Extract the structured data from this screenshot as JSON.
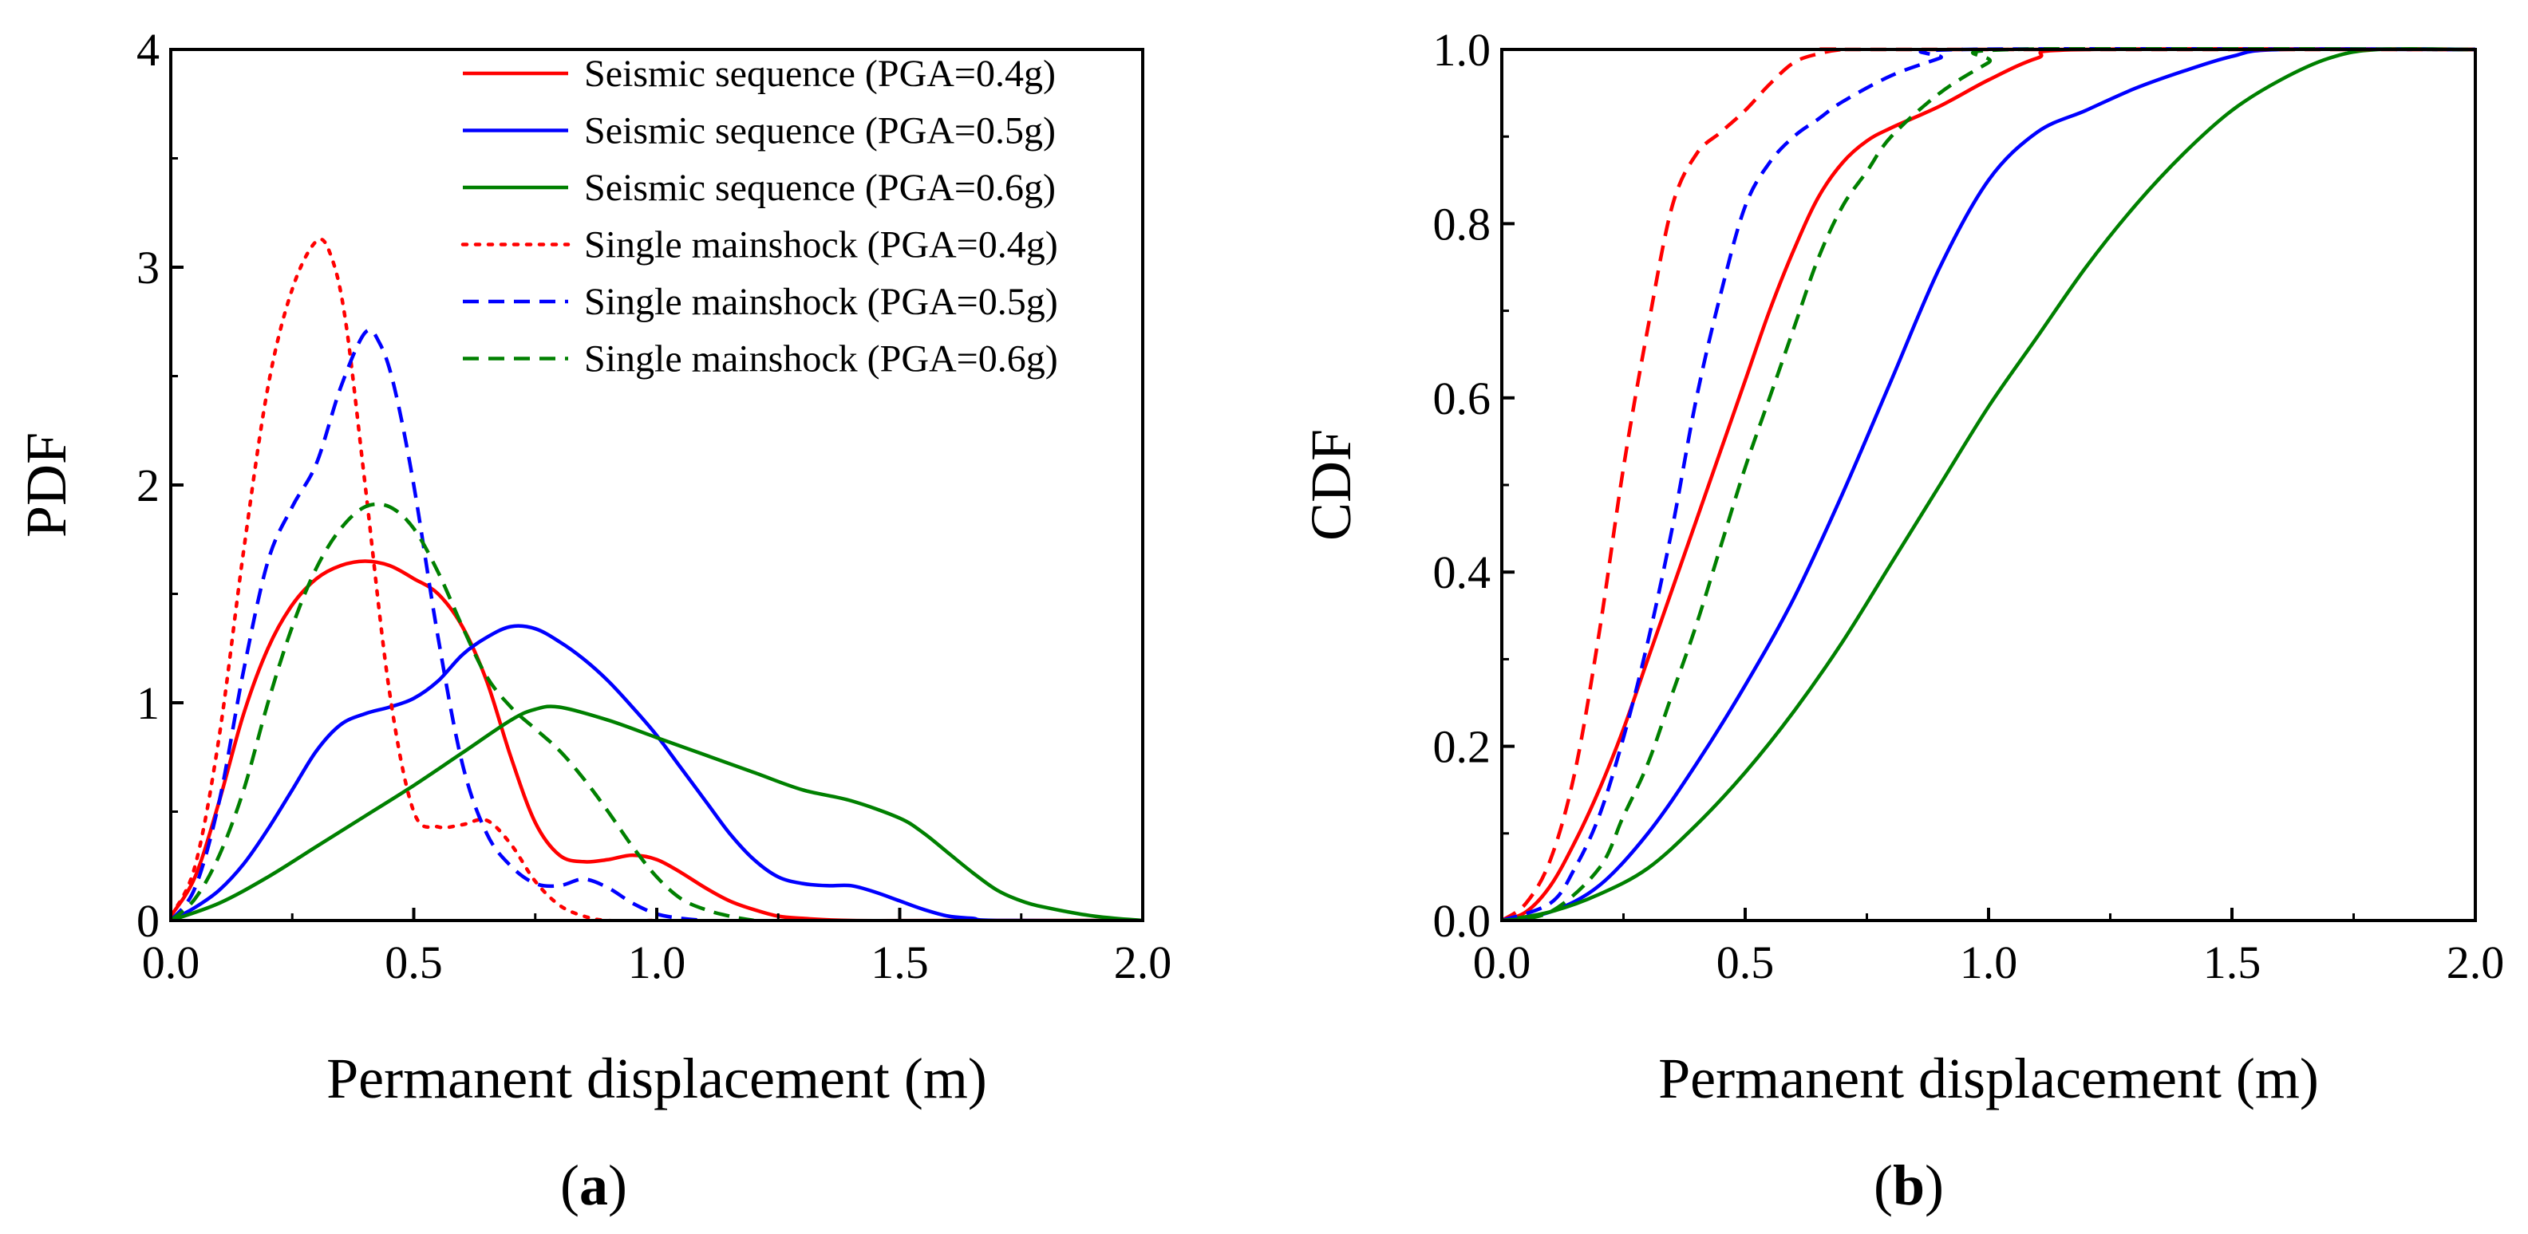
{
  "figure": {
    "captions": {
      "a": "a",
      "b": "b"
    }
  },
  "chart_data": [
    {
      "panel": "a",
      "type": "line",
      "title": "",
      "xlabel": "Permanent displacement (m)",
      "ylabel": "PDF",
      "xlim": [
        0,
        2
      ],
      "ylim": [
        0,
        4
      ],
      "xticks": [
        "0.0",
        "0.5",
        "1.0",
        "1.5",
        "2.0"
      ],
      "yticks": [
        "0",
        "1",
        "2",
        "3",
        "4"
      ],
      "legend_position": "top-right",
      "series": [
        {
          "name": "Seismic sequence (PGA=0.4g)",
          "color": "#ff0000",
          "dash": "solid",
          "x": [
            0,
            0.05,
            0.1,
            0.15,
            0.2,
            0.25,
            0.3,
            0.35,
            0.4,
            0.45,
            0.5,
            0.55,
            0.6,
            0.65,
            0.7,
            0.75,
            0.8,
            0.85,
            0.9,
            0.95,
            1.0,
            1.05,
            1.1,
            1.15,
            1.2,
            1.25,
            1.3,
            1.4,
            1.6,
            2.0
          ],
          "y": [
            0.02,
            0.2,
            0.55,
            0.95,
            1.25,
            1.45,
            1.57,
            1.63,
            1.65,
            1.63,
            1.57,
            1.5,
            1.35,
            1.1,
            0.75,
            0.45,
            0.3,
            0.27,
            0.28,
            0.3,
            0.28,
            0.22,
            0.15,
            0.09,
            0.05,
            0.02,
            0.01,
            0.0,
            0.0,
            0.0
          ]
        },
        {
          "name": "Seismic sequence (PGA=0.5g)",
          "color": "#0000ff",
          "dash": "solid",
          "x": [
            0,
            0.05,
            0.1,
            0.15,
            0.2,
            0.25,
            0.3,
            0.35,
            0.4,
            0.45,
            0.5,
            0.55,
            0.6,
            0.65,
            0.7,
            0.75,
            0.8,
            0.85,
            0.9,
            0.95,
            1.0,
            1.05,
            1.1,
            1.15,
            1.2,
            1.25,
            1.3,
            1.35,
            1.4,
            1.45,
            1.5,
            1.55,
            1.6,
            1.65,
            1.7,
            2.0
          ],
          "y": [
            0.0,
            0.06,
            0.14,
            0.26,
            0.42,
            0.6,
            0.78,
            0.9,
            0.95,
            0.98,
            1.02,
            1.1,
            1.22,
            1.3,
            1.35,
            1.34,
            1.28,
            1.2,
            1.1,
            0.98,
            0.85,
            0.7,
            0.55,
            0.4,
            0.28,
            0.2,
            0.17,
            0.16,
            0.16,
            0.13,
            0.09,
            0.05,
            0.02,
            0.01,
            0.0,
            0.0
          ]
        },
        {
          "name": "Seismic sequence (PGA=0.6g)",
          "color": "#008000",
          "dash": "solid",
          "x": [
            0,
            0.1,
            0.2,
            0.3,
            0.4,
            0.5,
            0.6,
            0.7,
            0.75,
            0.8,
            0.9,
            1.0,
            1.1,
            1.2,
            1.3,
            1.4,
            1.5,
            1.55,
            1.6,
            1.65,
            1.7,
            1.75,
            1.8,
            1.9,
            2.0
          ],
          "y": [
            0.0,
            0.08,
            0.2,
            0.34,
            0.48,
            0.62,
            0.77,
            0.92,
            0.97,
            0.98,
            0.92,
            0.84,
            0.76,
            0.68,
            0.6,
            0.55,
            0.47,
            0.4,
            0.31,
            0.22,
            0.14,
            0.09,
            0.06,
            0.02,
            0.0
          ]
        },
        {
          "name": "Single mainshock (PGA=0.4g)",
          "color": "#ff0000",
          "dash": "dot",
          "x": [
            0,
            0.05,
            0.1,
            0.15,
            0.2,
            0.25,
            0.3,
            0.33,
            0.36,
            0.4,
            0.45,
            0.5,
            0.55,
            0.6,
            0.65,
            0.7,
            0.75,
            0.8,
            0.85,
            0.9,
            1.0
          ],
          "y": [
            0.02,
            0.25,
            0.85,
            1.7,
            2.45,
            2.9,
            3.12,
            3.05,
            2.75,
            2.0,
            1.05,
            0.5,
            0.43,
            0.44,
            0.46,
            0.35,
            0.18,
            0.07,
            0.02,
            0.0,
            0.0
          ]
        },
        {
          "name": "Single mainshock (PGA=0.5g)",
          "color": "#0000ff",
          "dash": "dash",
          "x": [
            0,
            0.05,
            0.1,
            0.15,
            0.2,
            0.25,
            0.3,
            0.35,
            0.4,
            0.43,
            0.46,
            0.5,
            0.55,
            0.6,
            0.65,
            0.7,
            0.75,
            0.8,
            0.85,
            0.9,
            0.95,
            1.0,
            1.05,
            1.1
          ],
          "y": [
            0.0,
            0.15,
            0.55,
            1.15,
            1.65,
            1.9,
            2.1,
            2.45,
            2.7,
            2.65,
            2.45,
            2.0,
            1.3,
            0.72,
            0.4,
            0.25,
            0.17,
            0.16,
            0.19,
            0.15,
            0.08,
            0.03,
            0.01,
            0.0
          ]
        },
        {
          "name": "Single mainshock (PGA=0.6g)",
          "color": "#008000",
          "dash": "dash",
          "x": [
            0,
            0.05,
            0.1,
            0.15,
            0.2,
            0.25,
            0.3,
            0.35,
            0.4,
            0.45,
            0.5,
            0.55,
            0.6,
            0.65,
            0.7,
            0.75,
            0.8,
            0.85,
            0.9,
            0.95,
            1.0,
            1.05,
            1.1,
            1.15,
            1.2
          ],
          "y": [
            0.0,
            0.1,
            0.3,
            0.6,
            1.0,
            1.35,
            1.62,
            1.8,
            1.9,
            1.9,
            1.8,
            1.6,
            1.35,
            1.12,
            0.98,
            0.88,
            0.78,
            0.65,
            0.5,
            0.34,
            0.2,
            0.1,
            0.05,
            0.02,
            0.0
          ]
        }
      ]
    },
    {
      "panel": "b",
      "type": "line",
      "title": "",
      "xlabel": "Permanent displacement (m)",
      "ylabel": "CDF",
      "xlim": [
        0,
        2
      ],
      "ylim": [
        0,
        1
      ],
      "xticks": [
        "0.0",
        "0.5",
        "1.0",
        "1.5",
        "2.0"
      ],
      "yticks": [
        "0.0",
        "0.2",
        "0.4",
        "0.6",
        "0.8",
        "1.0"
      ],
      "series": [
        {
          "name": "Seismic sequence (PGA=0.4g)",
          "color": "#ff0000",
          "dash": "solid",
          "x": [
            0,
            0.05,
            0.1,
            0.15,
            0.2,
            0.25,
            0.3,
            0.35,
            0.4,
            0.45,
            0.5,
            0.55,
            0.6,
            0.65,
            0.7,
            0.75,
            0.8,
            0.9,
            1.0,
            1.1,
            1.2,
            2.0
          ],
          "y": [
            0.0,
            0.01,
            0.04,
            0.09,
            0.15,
            0.22,
            0.3,
            0.38,
            0.46,
            0.54,
            0.62,
            0.7,
            0.77,
            0.83,
            0.87,
            0.895,
            0.91,
            0.935,
            0.965,
            0.99,
            1.0,
            1.0
          ]
        },
        {
          "name": "Seismic sequence (PGA=0.5g)",
          "color": "#0000ff",
          "dash": "solid",
          "x": [
            0,
            0.1,
            0.2,
            0.3,
            0.4,
            0.5,
            0.6,
            0.7,
            0.8,
            0.9,
            1.0,
            1.1,
            1.2,
            1.3,
            1.4,
            1.5,
            1.6,
            2.0
          ],
          "y": [
            0.0,
            0.01,
            0.04,
            0.1,
            0.18,
            0.27,
            0.37,
            0.49,
            0.62,
            0.75,
            0.85,
            0.905,
            0.93,
            0.955,
            0.975,
            0.992,
            1.0,
            1.0
          ]
        },
        {
          "name": "Seismic sequence (PGA=0.6g)",
          "color": "#008000",
          "dash": "solid",
          "x": [
            0,
            0.1,
            0.2,
            0.3,
            0.4,
            0.5,
            0.6,
            0.7,
            0.8,
            0.9,
            1.0,
            1.1,
            1.2,
            1.3,
            1.4,
            1.5,
            1.6,
            1.7,
            1.8,
            2.0
          ],
          "y": [
            0.0,
            0.01,
            0.03,
            0.06,
            0.11,
            0.17,
            0.24,
            0.32,
            0.41,
            0.5,
            0.59,
            0.67,
            0.75,
            0.82,
            0.88,
            0.93,
            0.965,
            0.99,
            1.0,
            1.0
          ]
        },
        {
          "name": "Single mainshock (PGA=0.4g)",
          "color": "#ff0000",
          "dash": "dash",
          "x": [
            0,
            0.05,
            0.1,
            0.15,
            0.2,
            0.25,
            0.3,
            0.35,
            0.4,
            0.45,
            0.5,
            0.55,
            0.6,
            0.65,
            0.7,
            0.75,
            2.0
          ],
          "y": [
            0.0,
            0.02,
            0.07,
            0.17,
            0.33,
            0.52,
            0.68,
            0.82,
            0.88,
            0.905,
            0.93,
            0.96,
            0.985,
            0.995,
            1.0,
            1.0,
            1.0
          ]
        },
        {
          "name": "Single mainshock (PGA=0.5g)",
          "color": "#0000ff",
          "dash": "dash",
          "x": [
            0,
            0.1,
            0.15,
            0.2,
            0.25,
            0.3,
            0.35,
            0.4,
            0.45,
            0.5,
            0.55,
            0.6,
            0.65,
            0.7,
            0.8,
            0.9,
            0.95,
            2.0
          ],
          "y": [
            0.0,
            0.02,
            0.06,
            0.12,
            0.21,
            0.32,
            0.45,
            0.6,
            0.72,
            0.82,
            0.87,
            0.9,
            0.92,
            0.94,
            0.97,
            0.99,
            1.0,
            1.0
          ]
        },
        {
          "name": "Single mainshock (PGA=0.6g)",
          "color": "#008000",
          "dash": "dash",
          "x": [
            0,
            0.1,
            0.2,
            0.25,
            0.3,
            0.35,
            0.4,
            0.45,
            0.5,
            0.55,
            0.6,
            0.65,
            0.7,
            0.75,
            0.8,
            0.9,
            1.0,
            1.05,
            2.0
          ],
          "y": [
            0.0,
            0.01,
            0.06,
            0.12,
            0.18,
            0.26,
            0.34,
            0.43,
            0.52,
            0.6,
            0.68,
            0.76,
            0.82,
            0.86,
            0.9,
            0.95,
            0.985,
            1.0,
            1.0
          ]
        }
      ]
    }
  ]
}
